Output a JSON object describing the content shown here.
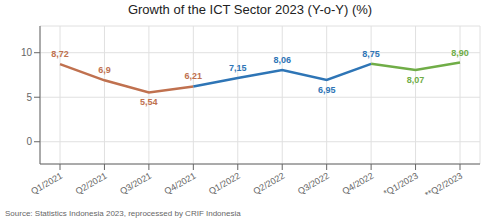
{
  "chart_data": {
    "type": "line",
    "title": "Growth of the ICT Sector 2023 (Y-o-Y) (%)",
    "annotations": [
      "Source: Statistics Indonesia 2023, reprocessed by CRIF Indonesia"
    ],
    "categories": [
      "Q1/2021",
      "Q2/2021",
      "Q3/2021",
      "Q4/2021",
      "Q1/2022",
      "Q2/2022",
      "Q3/2022",
      "Q4/2022",
      "*Q1/2023",
      "**Q2/2023"
    ],
    "series": [
      {
        "color": "#C0714F",
        "values": [
          8.72,
          6.9,
          5.54,
          6.21,
          null,
          null,
          null,
          null,
          null,
          null
        ],
        "value_labels": [
          "8,72",
          "6,9",
          "5,54",
          "6,21",
          null,
          null,
          null,
          null,
          null,
          null
        ]
      },
      {
        "color": "#2E75B6",
        "values": [
          null,
          null,
          null,
          6.21,
          7.15,
          8.06,
          6.95,
          8.75,
          null,
          null
        ],
        "value_labels": [
          null,
          null,
          null,
          null,
          "7,15",
          "8,06",
          "6,95",
          "8,75",
          null,
          null
        ]
      },
      {
        "color": "#70AD47",
        "values": [
          null,
          null,
          null,
          null,
          null,
          null,
          null,
          8.75,
          8.07,
          8.9
        ],
        "value_labels": [
          null,
          null,
          null,
          null,
          null,
          null,
          null,
          null,
          "8,07",
          "8,90"
        ]
      }
    ],
    "ylim": [
      -2.5,
      13.0
    ],
    "yticks": [
      0,
      5,
      10
    ],
    "grid": true,
    "data_labels": true
  }
}
